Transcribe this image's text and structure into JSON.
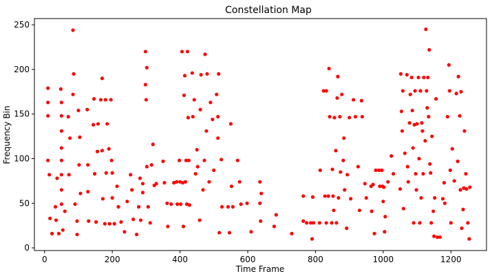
{
  "chart_data": {
    "type": "scatter",
    "title": "Constellation Map",
    "xlabel": "Time Frame",
    "ylabel": "Frequency Bin",
    "xlim": [
      -30,
      1305
    ],
    "ylim": [
      -3,
      257
    ],
    "xticks": [
      0,
      200,
      400,
      600,
      800,
      1000,
      1200
    ],
    "yticks": [
      0,
      50,
      100,
      150,
      200,
      250
    ],
    "grid": false,
    "legend": "none",
    "marker_color": "#ff0000",
    "series": [
      {
        "points": [
          [
            10,
            179
          ],
          [
            10,
            163
          ],
          [
            10,
            148
          ],
          [
            10,
            98
          ],
          [
            14,
            82
          ],
          [
            16,
            33
          ],
          [
            22,
            16
          ],
          [
            32,
            46
          ],
          [
            34,
            31
          ],
          [
            37,
            78
          ],
          [
            42,
            16
          ],
          [
            48,
            178
          ],
          [
            50,
            163
          ],
          [
            50,
            148
          ],
          [
            50,
            131
          ],
          [
            50,
            112
          ],
          [
            50,
            98
          ],
          [
            50,
            82
          ],
          [
            50,
            65
          ],
          [
            50,
            49
          ],
          [
            54,
            20
          ],
          [
            60,
            41
          ],
          [
            70,
            147
          ],
          [
            72,
            82
          ],
          [
            75,
            123
          ],
          [
            84,
            244
          ],
          [
            84,
            172
          ],
          [
            86,
            195
          ],
          [
            90,
            49
          ],
          [
            96,
            15
          ],
          [
            96,
            30
          ],
          [
            100,
            154
          ],
          [
            102,
            93
          ],
          [
            104,
            124
          ],
          [
            106,
            61
          ],
          [
            126,
            155
          ],
          [
            128,
            93
          ],
          [
            128,
            63
          ],
          [
            130,
            30
          ],
          [
            144,
            138
          ],
          [
            146,
            167
          ],
          [
            148,
            83
          ],
          [
            152,
            29
          ],
          [
            156,
            108
          ],
          [
            158,
            139
          ],
          [
            166,
            166
          ],
          [
            170,
            190
          ],
          [
            170,
            109
          ],
          [
            172,
            55
          ],
          [
            178,
            27
          ],
          [
            180,
            166
          ],
          [
            182,
            84
          ],
          [
            185,
            139
          ],
          [
            190,
            111
          ],
          [
            192,
            27
          ],
          [
            196,
            166
          ],
          [
            198,
            98
          ],
          [
            200,
            84
          ],
          [
            200,
            56
          ],
          [
            206,
            27
          ],
          [
            214,
            69
          ],
          [
            218,
            46
          ],
          [
            226,
            29
          ],
          [
            236,
            18
          ],
          [
            244,
            52
          ],
          [
            254,
            82
          ],
          [
            258,
            65
          ],
          [
            262,
            32
          ],
          [
            272,
            15
          ],
          [
            278,
            46
          ],
          [
            282,
            78
          ],
          [
            284,
            31
          ],
          [
            290,
            72
          ],
          [
            290,
            62
          ],
          [
            298,
            220
          ],
          [
            298,
            183
          ],
          [
            300,
            166
          ],
          [
            302,
            202
          ],
          [
            302,
            91
          ],
          [
            306,
            46
          ],
          [
            312,
            28
          ],
          [
            316,
            93
          ],
          [
            320,
            116
          ],
          [
            324,
            70
          ],
          [
            330,
            72
          ],
          [
            350,
            97
          ],
          [
            354,
            73
          ],
          [
            362,
            50
          ],
          [
            364,
            24
          ],
          [
            374,
            49
          ],
          [
            382,
            73
          ],
          [
            390,
            74
          ],
          [
            392,
            49
          ],
          [
            398,
            98
          ],
          [
            400,
            74
          ],
          [
            402,
            49
          ],
          [
            406,
            220
          ],
          [
            408,
            73
          ],
          [
            410,
            24
          ],
          [
            412,
            171
          ],
          [
            414,
            193
          ],
          [
            416,
            74
          ],
          [
            418,
            98
          ],
          [
            420,
            49
          ],
          [
            422,
            220
          ],
          [
            424,
            146
          ],
          [
            426,
            98
          ],
          [
            428,
            48
          ],
          [
            436,
            196
          ],
          [
            438,
            147
          ],
          [
            442,
            166
          ],
          [
            446,
            83
          ],
          [
            450,
            110
          ],
          [
            452,
            91
          ],
          [
            458,
            31
          ],
          [
            460,
            155
          ],
          [
            462,
            194
          ],
          [
            468,
            65
          ],
          [
            472,
            98
          ],
          [
            474,
            217
          ],
          [
            478,
            131
          ],
          [
            480,
            195
          ],
          [
            486,
            74
          ],
          [
            490,
            163
          ],
          [
            496,
            144
          ],
          [
            500,
            87
          ],
          [
            508,
            172
          ],
          [
            512,
            147
          ],
          [
            512,
            123
          ],
          [
            514,
            195
          ],
          [
            516,
            17
          ],
          [
            522,
            99
          ],
          [
            524,
            46
          ],
          [
            542,
            46
          ],
          [
            546,
            17
          ],
          [
            550,
            139
          ],
          [
            552,
            69
          ],
          [
            556,
            46
          ],
          [
            570,
            98
          ],
          [
            576,
            74
          ],
          [
            580,
            49
          ],
          [
            598,
            50
          ],
          [
            610,
            18
          ],
          [
            636,
            50
          ],
          [
            636,
            74
          ],
          [
            638,
            30
          ],
          [
            640,
            61
          ],
          [
            678,
            24
          ],
          [
            684,
            37
          ],
          [
            730,
            16
          ],
          [
            764,
            58
          ],
          [
            764,
            30
          ],
          [
            774,
            28
          ],
          [
            786,
            28
          ],
          [
            790,
            10
          ],
          [
            792,
            57
          ],
          [
            794,
            28
          ],
          [
            812,
            28
          ],
          [
            814,
            87
          ],
          [
            824,
            176
          ],
          [
            828,
            58
          ],
          [
            832,
            176
          ],
          [
            832,
            28
          ],
          [
            838,
            58
          ],
          [
            840,
            201
          ],
          [
            842,
            147
          ],
          [
            848,
            28
          ],
          [
            850,
            88
          ],
          [
            852,
            58
          ],
          [
            854,
            42
          ],
          [
            856,
            146
          ],
          [
            860,
            109
          ],
          [
            862,
            28
          ],
          [
            864,
            168
          ],
          [
            866,
            192
          ],
          [
            868,
            56
          ],
          [
            872,
            147
          ],
          [
            874,
            85
          ],
          [
            878,
            172
          ],
          [
            882,
            98
          ],
          [
            884,
            123
          ],
          [
            886,
            65
          ],
          [
            892,
            22
          ],
          [
            894,
            82
          ],
          [
            900,
            146
          ],
          [
            904,
            55
          ],
          [
            912,
            166
          ],
          [
            918,
            147
          ],
          [
            926,
            91
          ],
          [
            930,
            42
          ],
          [
            936,
            165
          ],
          [
            938,
            147
          ],
          [
            946,
            72
          ],
          [
            950,
            56
          ],
          [
            964,
            69
          ],
          [
            966,
            41
          ],
          [
            970,
            71
          ],
          [
            974,
            16
          ],
          [
            978,
            87
          ],
          [
            988,
            87
          ],
          [
            990,
            69
          ],
          [
            996,
            87
          ],
          [
            998,
            69
          ],
          [
            1000,
            52
          ],
          [
            1002,
            68
          ],
          [
            1004,
            18
          ],
          [
            1006,
            35
          ],
          [
            1014,
            74
          ],
          [
            1024,
            103
          ],
          [
            1030,
            83
          ],
          [
            1050,
            66
          ],
          [
            1052,
            195
          ],
          [
            1054,
            153
          ],
          [
            1056,
            131
          ],
          [
            1058,
            176
          ],
          [
            1060,
            44
          ],
          [
            1064,
            106
          ],
          [
            1070,
            194
          ],
          [
            1072,
            91
          ],
          [
            1074,
            74
          ],
          [
            1078,
            140
          ],
          [
            1080,
            172
          ],
          [
            1084,
            191
          ],
          [
            1086,
            154
          ],
          [
            1088,
            112
          ],
          [
            1090,
            28
          ],
          [
            1092,
            138
          ],
          [
            1094,
            176
          ],
          [
            1096,
            83
          ],
          [
            1098,
            65
          ],
          [
            1100,
            139
          ],
          [
            1104,
            191
          ],
          [
            1106,
            100
          ],
          [
            1108,
            28
          ],
          [
            1110,
            176
          ],
          [
            1112,
            56
          ],
          [
            1114,
            140
          ],
          [
            1116,
            131
          ],
          [
            1118,
            83
          ],
          [
            1120,
            191
          ],
          [
            1124,
            120
          ],
          [
            1126,
            245
          ],
          [
            1128,
            176
          ],
          [
            1130,
            157
          ],
          [
            1132,
            191
          ],
          [
            1134,
            147
          ],
          [
            1136,
            222
          ],
          [
            1138,
            94
          ],
          [
            1140,
            84
          ],
          [
            1142,
            28
          ],
          [
            1144,
            125
          ],
          [
            1148,
            41
          ],
          [
            1150,
            13
          ],
          [
            1152,
            56
          ],
          [
            1156,
            167
          ],
          [
            1160,
            12
          ],
          [
            1168,
            12
          ],
          [
            1176,
            55
          ],
          [
            1180,
            73
          ],
          [
            1182,
            50
          ],
          [
            1190,
            147
          ],
          [
            1194,
            205
          ],
          [
            1196,
            176
          ],
          [
            1198,
            87
          ],
          [
            1200,
            28
          ],
          [
            1204,
            111
          ],
          [
            1210,
            75
          ],
          [
            1216,
            173
          ],
          [
            1220,
            97
          ],
          [
            1222,
            192
          ],
          [
            1226,
            148
          ],
          [
            1228,
            65
          ],
          [
            1230,
            175
          ],
          [
            1232,
            22
          ],
          [
            1236,
            43
          ],
          [
            1238,
            67
          ],
          [
            1240,
            131
          ],
          [
            1244,
            83
          ],
          [
            1246,
            66
          ],
          [
            1250,
            28
          ],
          [
            1254,
            10
          ],
          [
            1256,
            68
          ]
        ]
      }
    ]
  }
}
